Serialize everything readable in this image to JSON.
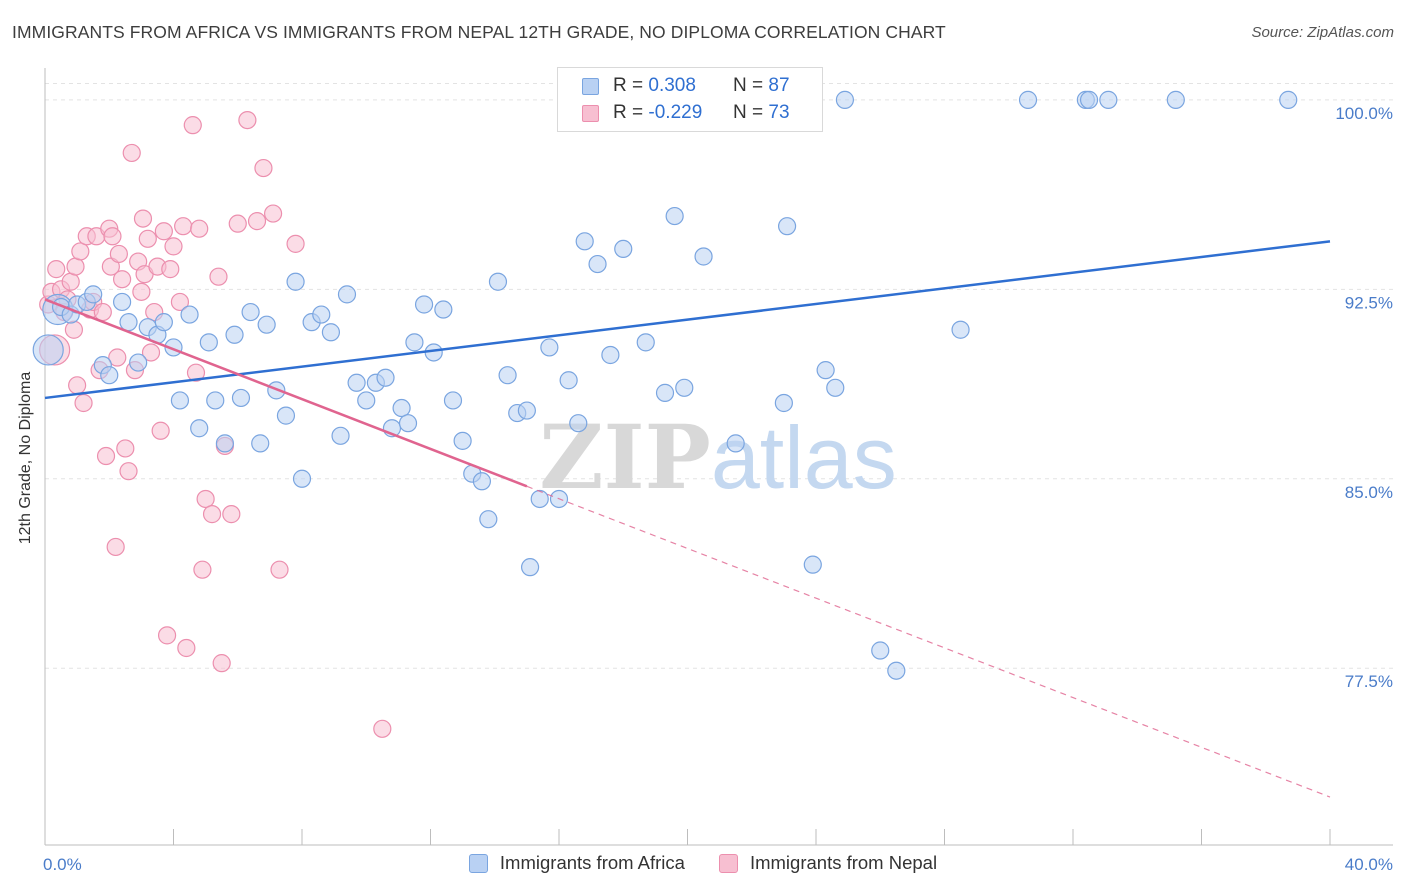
{
  "title": "IMMIGRANTS FROM AFRICA VS IMMIGRANTS FROM NEPAL 12TH GRADE, NO DIPLOMA CORRELATION CHART",
  "source": "Source: ZipAtlas.com",
  "watermark": "ZIPatlas",
  "colors": {
    "africa_fill": "#b9d1f3",
    "africa_stroke": "#7aa5e0",
    "africa_line": "#2f6fd1",
    "nepal_fill": "#f7bfd1",
    "nepal_stroke": "#ec8fae",
    "nepal_line": "#e0648f",
    "tick_label": "#4a7cc9",
    "grid": "#e3e3e3"
  },
  "legend": {
    "rows": [
      {
        "r_label": "R =",
        "r_value": "0.308",
        "n_label": "N =",
        "n_value": "87"
      },
      {
        "r_label": "R =",
        "r_value": "-0.229",
        "n_label": "N =",
        "n_value": "73"
      }
    ]
  },
  "chart_data": {
    "type": "scatter",
    "title": "IMMIGRANTS FROM AFRICA VS IMMIGRANTS FROM NEPAL 12TH GRADE, NO DIPLOMA CORRELATION CHART",
    "xlabel": "",
    "ylabel": "12th Grade, No Diploma",
    "xlim": [
      0,
      40
    ],
    "ylim": [
      70.5,
      101.5
    ],
    "x_tick_labels": [
      "0.0%",
      "40.0%"
    ],
    "y_ticks": [
      77.5,
      85.0,
      92.5,
      100.0
    ],
    "y_tick_labels": [
      "77.5%",
      "85.0%",
      "92.5%",
      "100.0%"
    ],
    "grid": true,
    "legend_placement": "top-center",
    "series": [
      {
        "name": "Immigrants from Africa",
        "trend": {
          "x0": 0.0,
          "y0": 88.2,
          "x1": 40.0,
          "y1": 94.4
        },
        "points": [
          {
            "x": 0.1,
            "y": 90.1,
            "big": true
          },
          {
            "x": 0.4,
            "y": 91.7,
            "big": true
          },
          {
            "x": 0.5,
            "y": 91.8
          },
          {
            "x": 0.8,
            "y": 91.5
          },
          {
            "x": 1.0,
            "y": 91.9
          },
          {
            "x": 1.3,
            "y": 92.0
          },
          {
            "x": 1.5,
            "y": 92.3
          },
          {
            "x": 1.8,
            "y": 89.5
          },
          {
            "x": 2.0,
            "y": 89.1
          },
          {
            "x": 2.4,
            "y": 92.0
          },
          {
            "x": 2.6,
            "y": 91.2
          },
          {
            "x": 2.9,
            "y": 89.6
          },
          {
            "x": 3.2,
            "y": 91.0
          },
          {
            "x": 3.5,
            "y": 90.7
          },
          {
            "x": 3.7,
            "y": 91.2
          },
          {
            "x": 4.0,
            "y": 90.2
          },
          {
            "x": 4.2,
            "y": 88.1
          },
          {
            "x": 4.5,
            "y": 91.5
          },
          {
            "x": 4.8,
            "y": 87.0
          },
          {
            "x": 5.1,
            "y": 90.4
          },
          {
            "x": 5.3,
            "y": 88.1
          },
          {
            "x": 5.6,
            "y": 86.4
          },
          {
            "x": 5.9,
            "y": 90.7
          },
          {
            "x": 6.1,
            "y": 88.2
          },
          {
            "x": 6.4,
            "y": 91.6
          },
          {
            "x": 6.7,
            "y": 86.4
          },
          {
            "x": 6.9,
            "y": 91.1
          },
          {
            "x": 7.2,
            "y": 88.5
          },
          {
            "x": 7.5,
            "y": 87.5
          },
          {
            "x": 7.8,
            "y": 92.8
          },
          {
            "x": 8.0,
            "y": 85.0
          },
          {
            "x": 8.3,
            "y": 91.2
          },
          {
            "x": 8.6,
            "y": 91.5
          },
          {
            "x": 8.9,
            "y": 90.8
          },
          {
            "x": 9.2,
            "y": 86.7
          },
          {
            "x": 9.4,
            "y": 92.3
          },
          {
            "x": 9.7,
            "y": 88.8
          },
          {
            "x": 10.0,
            "y": 88.1
          },
          {
            "x": 10.3,
            "y": 88.8
          },
          {
            "x": 10.6,
            "y": 89.0
          },
          {
            "x": 10.8,
            "y": 87.0
          },
          {
            "x": 11.1,
            "y": 87.8
          },
          {
            "x": 11.3,
            "y": 87.2
          },
          {
            "x": 11.5,
            "y": 90.4
          },
          {
            "x": 11.8,
            "y": 91.9
          },
          {
            "x": 12.1,
            "y": 90.0
          },
          {
            "x": 12.4,
            "y": 91.7
          },
          {
            "x": 12.7,
            "y": 88.1
          },
          {
            "x": 13.0,
            "y": 86.5
          },
          {
            "x": 13.3,
            "y": 85.2
          },
          {
            "x": 13.6,
            "y": 84.9
          },
          {
            "x": 13.8,
            "y": 83.4
          },
          {
            "x": 14.1,
            "y": 92.8
          },
          {
            "x": 14.4,
            "y": 89.1
          },
          {
            "x": 14.7,
            "y": 87.6
          },
          {
            "x": 15.0,
            "y": 87.7
          },
          {
            "x": 15.1,
            "y": 81.5
          },
          {
            "x": 15.4,
            "y": 84.2
          },
          {
            "x": 15.7,
            "y": 90.2
          },
          {
            "x": 16.0,
            "y": 84.2
          },
          {
            "x": 16.3,
            "y": 88.9
          },
          {
            "x": 16.6,
            "y": 87.2
          },
          {
            "x": 16.8,
            "y": 94.4
          },
          {
            "x": 17.2,
            "y": 93.5
          },
          {
            "x": 17.6,
            "y": 89.9
          },
          {
            "x": 18.0,
            "y": 94.1
          },
          {
            "x": 18.7,
            "y": 90.4
          },
          {
            "x": 19.3,
            "y": 88.4
          },
          {
            "x": 19.6,
            "y": 95.4
          },
          {
            "x": 19.9,
            "y": 88.6
          },
          {
            "x": 20.5,
            "y": 93.8
          },
          {
            "x": 21.0,
            "y": 100.0
          },
          {
            "x": 21.5,
            "y": 86.4
          },
          {
            "x": 23.0,
            "y": 88.0
          },
          {
            "x": 23.1,
            "y": 95.0
          },
          {
            "x": 23.9,
            "y": 81.6
          },
          {
            "x": 24.3,
            "y": 89.3
          },
          {
            "x": 24.6,
            "y": 88.6
          },
          {
            "x": 24.9,
            "y": 100.0
          },
          {
            "x": 26.0,
            "y": 78.2
          },
          {
            "x": 26.5,
            "y": 77.4
          },
          {
            "x": 28.5,
            "y": 90.9
          },
          {
            "x": 30.6,
            "y": 100.0
          },
          {
            "x": 32.4,
            "y": 100.0
          },
          {
            "x": 32.5,
            "y": 100.0
          },
          {
            "x": 33.1,
            "y": 100.0
          },
          {
            "x": 35.2,
            "y": 100.0
          },
          {
            "x": 38.7,
            "y": 100.0
          }
        ]
      },
      {
        "name": "Immigrants from Nepal",
        "trend": {
          "x0": 0.0,
          "y0": 92.1,
          "x1": 15.0,
          "y1": 84.7
        },
        "trend_dashed": {
          "x0": 15.0,
          "y0": 84.7,
          "x1": 40.0,
          "y1": 72.4
        },
        "points": [
          {
            "x": 0.1,
            "y": 91.9
          },
          {
            "x": 0.2,
            "y": 92.4
          },
          {
            "x": 0.3,
            "y": 90.1,
            "big": true
          },
          {
            "x": 0.35,
            "y": 93.3
          },
          {
            "x": 0.5,
            "y": 92.5
          },
          {
            "x": 0.6,
            "y": 91.6
          },
          {
            "x": 0.7,
            "y": 92.1
          },
          {
            "x": 0.8,
            "y": 92.8
          },
          {
            "x": 0.9,
            "y": 90.9
          },
          {
            "x": 0.95,
            "y": 93.4
          },
          {
            "x": 1.0,
            "y": 88.7
          },
          {
            "x": 1.1,
            "y": 94.0
          },
          {
            "x": 1.2,
            "y": 88.0
          },
          {
            "x": 1.3,
            "y": 94.6
          },
          {
            "x": 1.4,
            "y": 91.7
          },
          {
            "x": 1.5,
            "y": 92.0
          },
          {
            "x": 1.6,
            "y": 94.6
          },
          {
            "x": 1.7,
            "y": 89.3
          },
          {
            "x": 1.8,
            "y": 91.6
          },
          {
            "x": 1.9,
            "y": 85.9
          },
          {
            "x": 2.0,
            "y": 94.9
          },
          {
            "x": 2.05,
            "y": 93.4
          },
          {
            "x": 2.1,
            "y": 94.6
          },
          {
            "x": 2.2,
            "y": 82.3
          },
          {
            "x": 2.25,
            "y": 89.8
          },
          {
            "x": 2.3,
            "y": 93.9
          },
          {
            "x": 2.4,
            "y": 92.9
          },
          {
            "x": 2.5,
            "y": 86.2
          },
          {
            "x": 2.6,
            "y": 85.3
          },
          {
            "x": 2.7,
            "y": 97.9
          },
          {
            "x": 2.8,
            "y": 89.3
          },
          {
            "x": 2.9,
            "y": 93.6
          },
          {
            "x": 3.0,
            "y": 92.4
          },
          {
            "x": 3.05,
            "y": 95.3
          },
          {
            "x": 3.1,
            "y": 93.1
          },
          {
            "x": 3.2,
            "y": 94.5
          },
          {
            "x": 3.3,
            "y": 90.0
          },
          {
            "x": 3.4,
            "y": 91.6
          },
          {
            "x": 3.5,
            "y": 93.4
          },
          {
            "x": 3.6,
            "y": 86.9
          },
          {
            "x": 3.7,
            "y": 94.8
          },
          {
            "x": 3.8,
            "y": 78.8
          },
          {
            "x": 3.9,
            "y": 93.3
          },
          {
            "x": 4.0,
            "y": 94.2
          },
          {
            "x": 4.2,
            "y": 92.0
          },
          {
            "x": 4.3,
            "y": 95.0
          },
          {
            "x": 4.4,
            "y": 78.3
          },
          {
            "x": 4.6,
            "y": 99.0
          },
          {
            "x": 4.7,
            "y": 89.2
          },
          {
            "x": 4.8,
            "y": 94.9
          },
          {
            "x": 4.9,
            "y": 81.4
          },
          {
            "x": 5.0,
            "y": 84.2
          },
          {
            "x": 5.2,
            "y": 83.6
          },
          {
            "x": 5.4,
            "y": 93.0
          },
          {
            "x": 5.5,
            "y": 77.7
          },
          {
            "x": 5.6,
            "y": 86.3
          },
          {
            "x": 5.8,
            "y": 83.6
          },
          {
            "x": 6.0,
            "y": 95.1
          },
          {
            "x": 6.3,
            "y": 99.2
          },
          {
            "x": 6.6,
            "y": 95.2
          },
          {
            "x": 6.8,
            "y": 97.3
          },
          {
            "x": 7.1,
            "y": 95.5
          },
          {
            "x": 7.3,
            "y": 81.4
          },
          {
            "x": 7.8,
            "y": 94.3
          },
          {
            "x": 10.5,
            "y": 75.1
          }
        ]
      }
    ]
  },
  "bottom_legend": [
    {
      "label": "Immigrants from Africa"
    },
    {
      "label": "Immigrants from Nepal"
    }
  ]
}
